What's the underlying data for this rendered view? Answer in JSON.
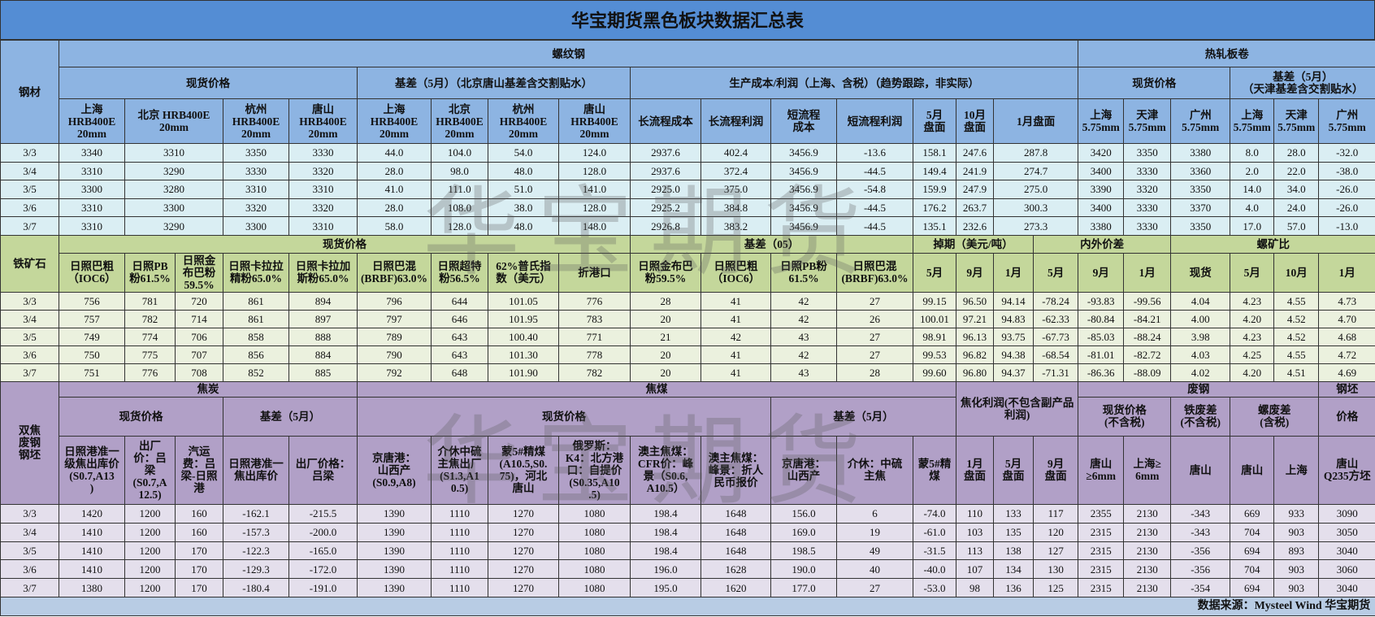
{
  "title": "华宝期货黑色板块数据汇总表",
  "watermark": "华宝期货",
  "colors": {
    "title_bg": "#548dd4",
    "steel_header": "#8db4e2",
    "steel_data": "#daeef3",
    "ore_header": "#c4d79b",
    "ore_data": "#ebf1de",
    "coke_header": "#b1a0c7",
    "coke_data": "#e4dfec",
    "footer": "#b8cce4"
  },
  "steel": {
    "label": "钢材",
    "group1": "螺纹钢",
    "group2": "热轧板卷",
    "sub": [
      "现货价格",
      "基差（5月）（北京唐山基差含交割贴水）",
      "生产成本/利润（上海、含税）（趋势跟踪，非实际）",
      "现货价格",
      "基差（5月）\n（天津基差含交割贴水）"
    ],
    "cols": [
      "上海\nHRB400E\n20mm",
      "北京 HRB400E\n20mm",
      "杭州\nHRB400E\n20mm",
      "唐山\nHRB400E\n20mm",
      "上海\nHRB400E\n20mm",
      "北京\nHRB400E\n20mm",
      "杭州\nHRB400E\n20mm",
      "唐山\nHRB400E\n20mm",
      "长流程成本",
      "长流程利润",
      "短流程\n成本",
      "短流程利润",
      "5月\n盘面",
      "10月\n盘面",
      "1月盘面",
      "上海\n5.75mm",
      "天津\n5.75mm",
      "广州\n5.75mm",
      "上海\n5.75mm",
      "天津\n5.75mm",
      "广州\n5.75mm"
    ],
    "rows": [
      [
        "3/3",
        "3340",
        "3310",
        "3350",
        "3330",
        "44.0",
        "104.0",
        "54.0",
        "124.0",
        "2937.6",
        "402.4",
        "3456.9",
        "-13.6",
        "158.1",
        "247.6",
        "287.8",
        "3420",
        "3350",
        "3380",
        "8.0",
        "28.0",
        "-32.0"
      ],
      [
        "3/4",
        "3310",
        "3290",
        "3330",
        "3320",
        "28.0",
        "98.0",
        "48.0",
        "128.0",
        "2937.6",
        "372.4",
        "3456.9",
        "-44.5",
        "149.4",
        "241.9",
        "274.7",
        "3400",
        "3330",
        "3360",
        "2.0",
        "22.0",
        "-38.0"
      ],
      [
        "3/5",
        "3300",
        "3280",
        "3310",
        "3310",
        "41.0",
        "111.0",
        "51.0",
        "141.0",
        "2925.0",
        "375.0",
        "3456.9",
        "-54.8",
        "159.9",
        "247.9",
        "275.0",
        "3390",
        "3320",
        "3350",
        "14.0",
        "34.0",
        "-26.0"
      ],
      [
        "3/6",
        "3310",
        "3300",
        "3320",
        "3320",
        "28.0",
        "108.0",
        "38.0",
        "128.0",
        "2925.2",
        "384.8",
        "3456.9",
        "-44.5",
        "176.2",
        "263.7",
        "300.3",
        "3400",
        "3330",
        "3370",
        "4.0",
        "24.0",
        "-26.0"
      ],
      [
        "3/7",
        "3310",
        "3290",
        "3300",
        "3310",
        "58.0",
        "128.0",
        "48.0",
        "148.0",
        "2926.8",
        "383.2",
        "3456.9",
        "-44.5",
        "135.1",
        "232.6",
        "273.3",
        "3380",
        "3330",
        "3350",
        "17.0",
        "57.0",
        "-13.0"
      ]
    ]
  },
  "ore": {
    "label": "铁矿石",
    "groups": [
      "现货价格",
      "基差（05）",
      "掉期（美元/吨）",
      "内外价差",
      "螺矿比"
    ],
    "cols": [
      "日照巴粗\n（IOC6）",
      "日照PB\n粉61.5%",
      "日照金\n布巴粉\n59.5%",
      "日照卡拉拉\n精粉65.0%",
      "日照卡拉加\n斯粉65.0%",
      "日照巴混\n(BRBF)63.0%",
      "日照超特\n粉56.5%",
      "62%普氏指\n数（美元）",
      "折港口",
      "日照金布巴\n粉59.5%",
      "日照巴粗\n（IOC6）",
      "日照PB粉\n61.5%",
      "日照巴混\n(BRBF)63.0%",
      "5月",
      "9月",
      "1月",
      "5月",
      "9月",
      "1月",
      "现货",
      "5月",
      "10月",
      "1月"
    ],
    "rows": [
      [
        "3/3",
        "756",
        "781",
        "720",
        "861",
        "894",
        "796",
        "644",
        "101.05",
        "776",
        "28",
        "41",
        "42",
        "27",
        "99.15",
        "96.50",
        "94.14",
        "-78.24",
        "-93.83",
        "-99.56",
        "4.04",
        "4.23",
        "4.55",
        "4.73"
      ],
      [
        "3/4",
        "757",
        "782",
        "714",
        "861",
        "897",
        "797",
        "646",
        "101.95",
        "783",
        "20",
        "41",
        "42",
        "26",
        "100.01",
        "97.21",
        "94.83",
        "-62.33",
        "-80.84",
        "-84.21",
        "4.00",
        "4.20",
        "4.52",
        "4.70"
      ],
      [
        "3/5",
        "749",
        "774",
        "706",
        "858",
        "888",
        "789",
        "643",
        "100.40",
        "771",
        "21",
        "42",
        "43",
        "27",
        "98.91",
        "96.13",
        "93.75",
        "-67.73",
        "-85.03",
        "-88.24",
        "3.98",
        "4.23",
        "4.52",
        "4.68"
      ],
      [
        "3/6",
        "750",
        "775",
        "707",
        "856",
        "884",
        "790",
        "643",
        "101.30",
        "778",
        "20",
        "41",
        "42",
        "27",
        "99.53",
        "96.82",
        "94.38",
        "-68.54",
        "-81.01",
        "-82.72",
        "4.03",
        "4.25",
        "4.55",
        "4.72"
      ],
      [
        "3/7",
        "751",
        "776",
        "708",
        "852",
        "885",
        "792",
        "648",
        "101.90",
        "782",
        "20",
        "41",
        "43",
        "28",
        "99.60",
        "96.80",
        "94.37",
        "-71.31",
        "-86.36",
        "-88.09",
        "4.02",
        "4.20",
        "4.51",
        "4.69"
      ]
    ]
  },
  "coke": {
    "label": "双焦\n废钢\n钢坯",
    "groups": [
      "焦炭",
      "焦煤",
      "焦化利润(不包含副产品利润)",
      "废钢",
      "钢坯"
    ],
    "sub": [
      "现货价格",
      "基差（5月）",
      "现货价格",
      "基差（5月）",
      "现货价格\n(不含税)",
      "铁废差\n(不含税)",
      "螺废差\n(含税)",
      "价格"
    ],
    "cols": [
      "日照港准一\n级焦出库价\n(S0.7,A13\n)",
      "出厂\n价：吕\n梁\n(S0.7,A\n12.5)",
      "汽运\n费：吕\n梁-日照\n港",
      "日照港准一\n焦出库价",
      "出厂价格：\n吕梁",
      "京唐港：\n山西产\n(S0.9,A8)",
      "介休中硫\n主焦出厂\n(S1.3,A1\n0.5)",
      "蒙5#精煤\n(A10.5,S0.\n75)，河北\n唐山",
      "俄罗斯：\nK4：北方港\n口：自提价\n(S0.35,A10\n.5)",
      "澳主焦煤：\nCFR价：峰\n景（S0.6,\nA10.5）",
      "澳主焦煤：\n峰景：折人\n民币报价",
      "京唐港：\n山西产",
      "介休：中硫\n主焦",
      "蒙5#精\n煤",
      "1月\n盘面",
      "5月\n盘面",
      "9月\n盘面",
      "唐山\n≥6mm",
      "上海≥\n6mm",
      "唐山",
      "唐山",
      "上海",
      "唐山\nQ235方坯"
    ],
    "rows": [
      [
        "3/3",
        "1420",
        "1200",
        "160",
        "-162.1",
        "-215.5",
        "1390",
        "1110",
        "1270",
        "1080",
        "198.4",
        "1648",
        "156.0",
        "6",
        "-74.0",
        "110",
        "133",
        "117",
        "2355",
        "2130",
        "-343",
        "669",
        "933",
        "3090"
      ],
      [
        "3/4",
        "1410",
        "1200",
        "160",
        "-157.3",
        "-200.0",
        "1390",
        "1110",
        "1270",
        "1080",
        "198.4",
        "1648",
        "169.0",
        "19",
        "-61.0",
        "103",
        "135",
        "120",
        "2315",
        "2130",
        "-343",
        "704",
        "903",
        "3050"
      ],
      [
        "3/5",
        "1410",
        "1200",
        "170",
        "-122.3",
        "-165.0",
        "1390",
        "1110",
        "1270",
        "1080",
        "198.4",
        "1648",
        "198.5",
        "49",
        "-31.5",
        "113",
        "138",
        "127",
        "2315",
        "2130",
        "-356",
        "694",
        "893",
        "3040"
      ],
      [
        "3/6",
        "1410",
        "1200",
        "170",
        "-129.3",
        "-172.0",
        "1390",
        "1110",
        "1270",
        "1080",
        "196.0",
        "1628",
        "190.0",
        "40",
        "-40.0",
        "107",
        "134",
        "130",
        "2315",
        "2130",
        "-356",
        "704",
        "903",
        "3060"
      ],
      [
        "3/7",
        "1380",
        "1200",
        "170",
        "-180.4",
        "-191.0",
        "1390",
        "1110",
        "1270",
        "1080",
        "195.0",
        "1620",
        "177.0",
        "27",
        "-53.0",
        "98",
        "136",
        "125",
        "2315",
        "2130",
        "-354",
        "694",
        "903",
        "3040"
      ]
    ]
  },
  "footer": "数据来源：Mysteel Wind 华宝期货"
}
